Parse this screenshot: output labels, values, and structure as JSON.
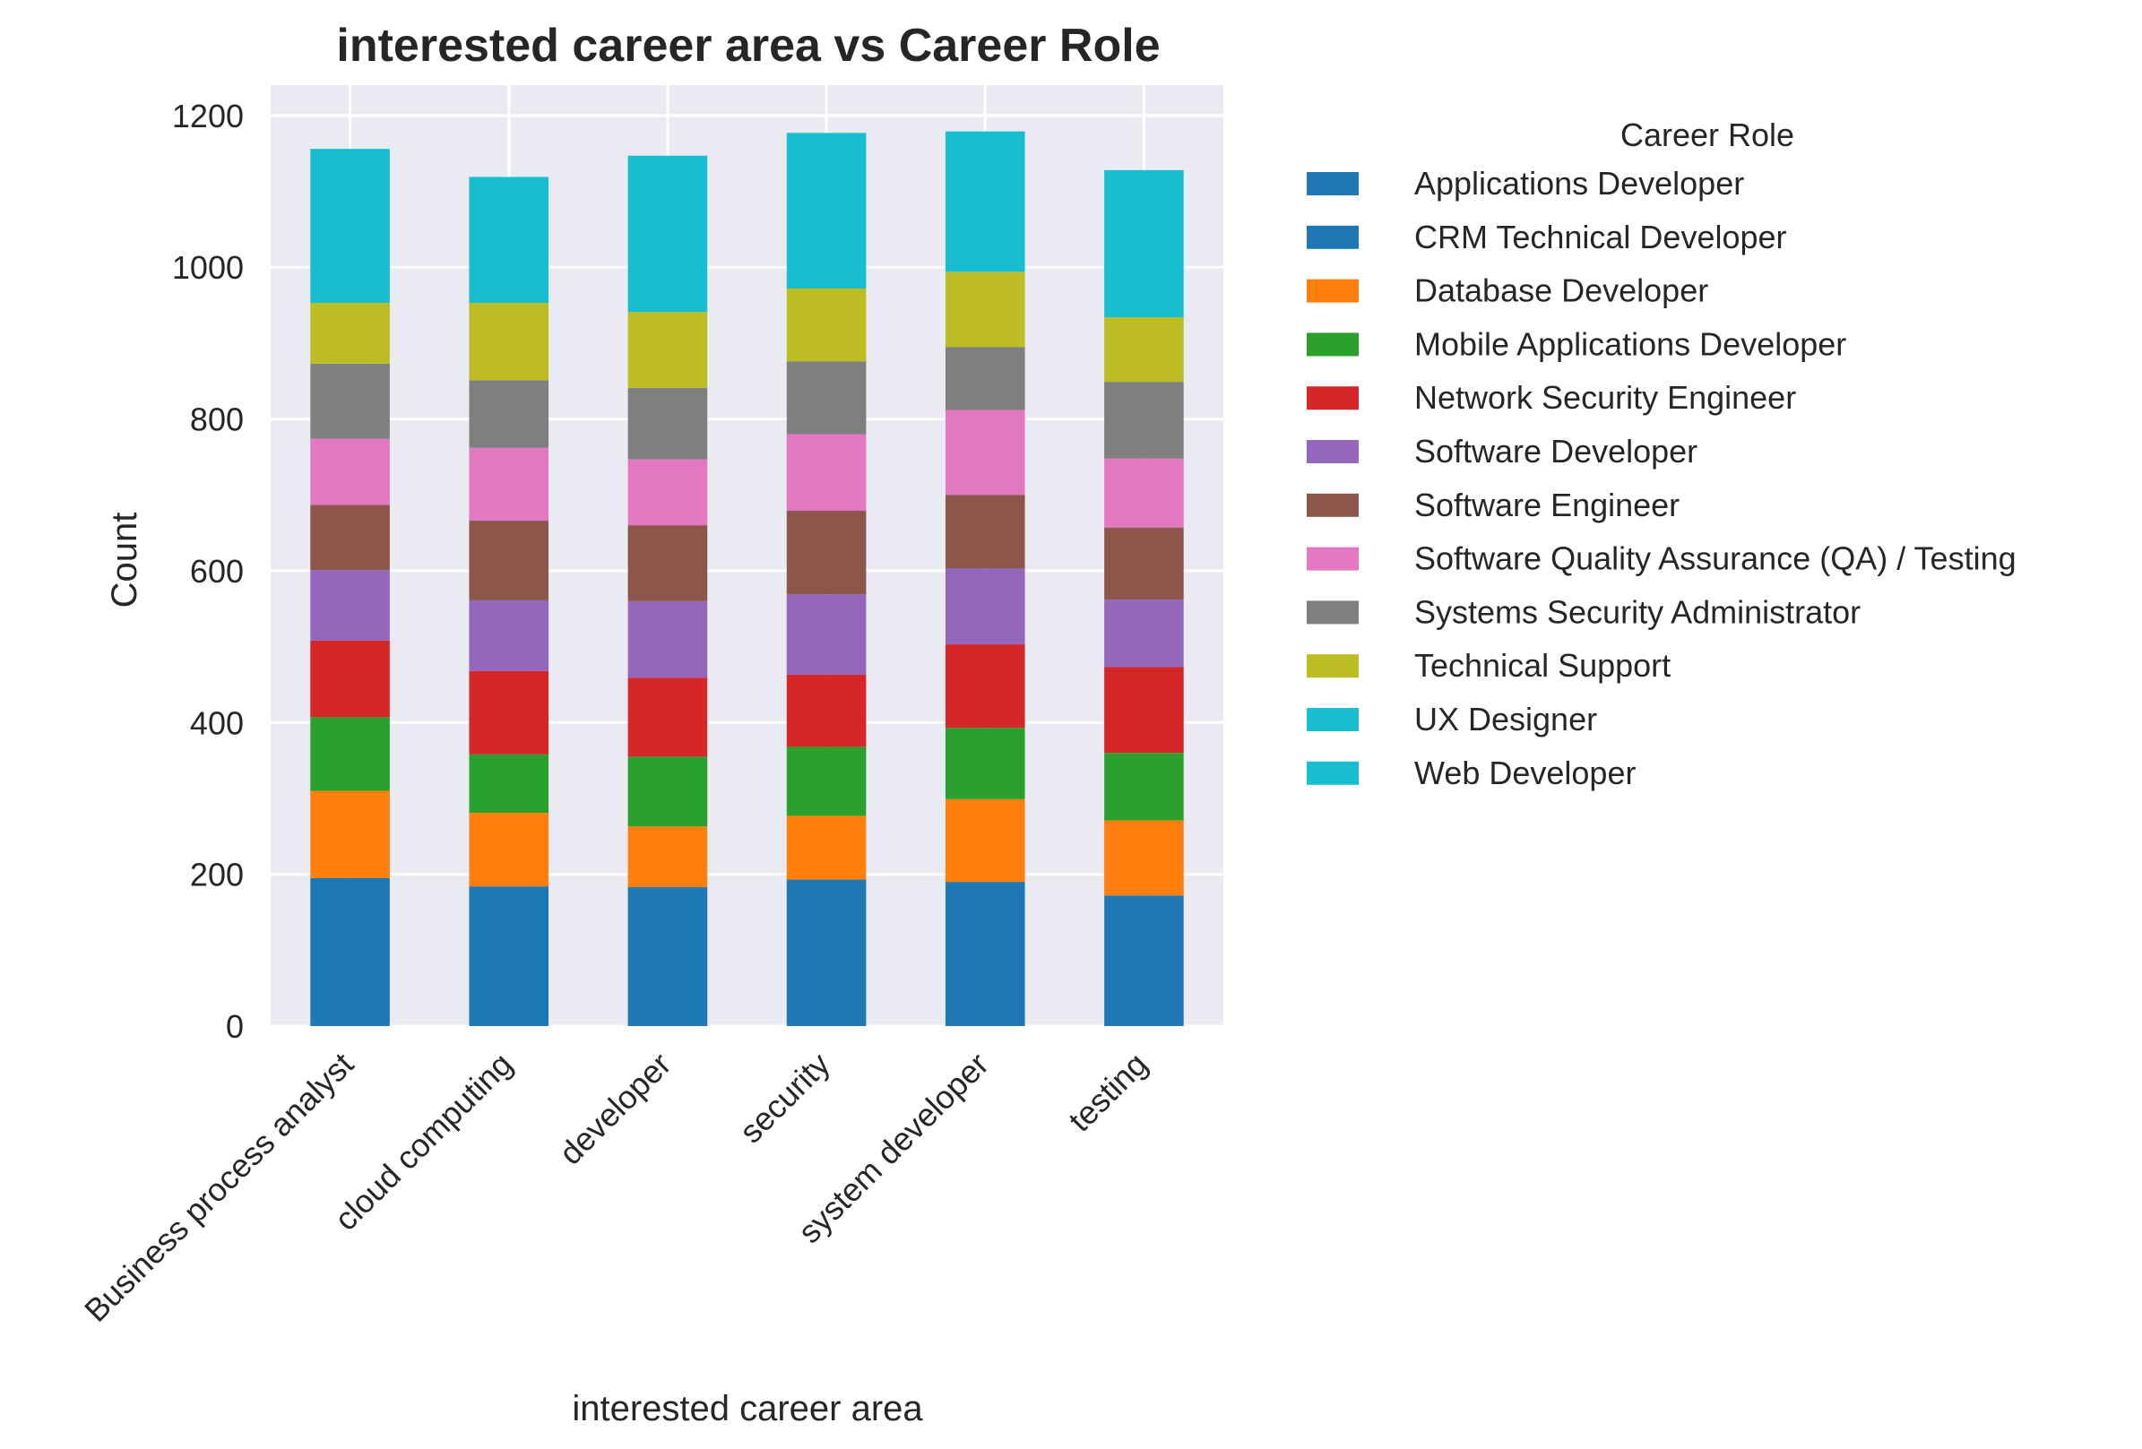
{
  "chart_data": {
    "type": "bar",
    "stacked": true,
    "title": "interested career area vs Career Role",
    "xlabel": "interested career area",
    "ylabel": "Count",
    "ylim": [
      0,
      1240
    ],
    "yticks": [
      0,
      200,
      400,
      600,
      800,
      1000,
      1200
    ],
    "grid": true,
    "legend_title": "Career Role",
    "legend_position": "outside-right",
    "categories": [
      "Business process analyst",
      "cloud computing",
      "developer",
      "security",
      "system developer",
      "testing"
    ],
    "series": [
      {
        "name": "Applications Developer",
        "color": "#1f77b4",
        "values": [
          0,
          0,
          0,
          0,
          0,
          0
        ]
      },
      {
        "name": "CRM Technical Developer",
        "color": "#1f77b4",
        "values": [
          195,
          184,
          183,
          193,
          190,
          172
        ]
      },
      {
        "name": "Database Developer",
        "color": "#ff7f0e",
        "values": [
          115,
          97,
          80,
          84,
          109,
          99
        ]
      },
      {
        "name": "Mobile Applications Developer",
        "color": "#2ca02c",
        "values": [
          97,
          77,
          92,
          91,
          94,
          89
        ]
      },
      {
        "name": "Network Security Engineer",
        "color": "#d62728",
        "values": [
          101,
          110,
          104,
          95,
          110,
          113
        ]
      },
      {
        "name": "Software Developer",
        "color": "#9467bd",
        "values": [
          93,
          93,
          101,
          106,
          100,
          89
        ]
      },
      {
        "name": "Software Engineer",
        "color": "#8c564b",
        "values": [
          86,
          105,
          100,
          110,
          97,
          95
        ]
      },
      {
        "name": "Software Quality Assurance (QA) / Testing",
        "color": "#e377c2",
        "values": [
          87,
          96,
          87,
          101,
          112,
          91
        ]
      },
      {
        "name": "Systems Security Administrator",
        "color": "#7f7f7f",
        "values": [
          99,
          89,
          94,
          96,
          83,
          101
        ]
      },
      {
        "name": "Technical Support",
        "color": "#bcbd22",
        "values": [
          80,
          102,
          100,
          96,
          99,
          85
        ]
      },
      {
        "name": "UX Designer",
        "color": "#17becf",
        "values": [
          203,
          166,
          206,
          205,
          185,
          194
        ]
      },
      {
        "name": "Web Developer",
        "color": "#17becf",
        "values": [
          0,
          0,
          0,
          0,
          0,
          0
        ]
      }
    ]
  }
}
